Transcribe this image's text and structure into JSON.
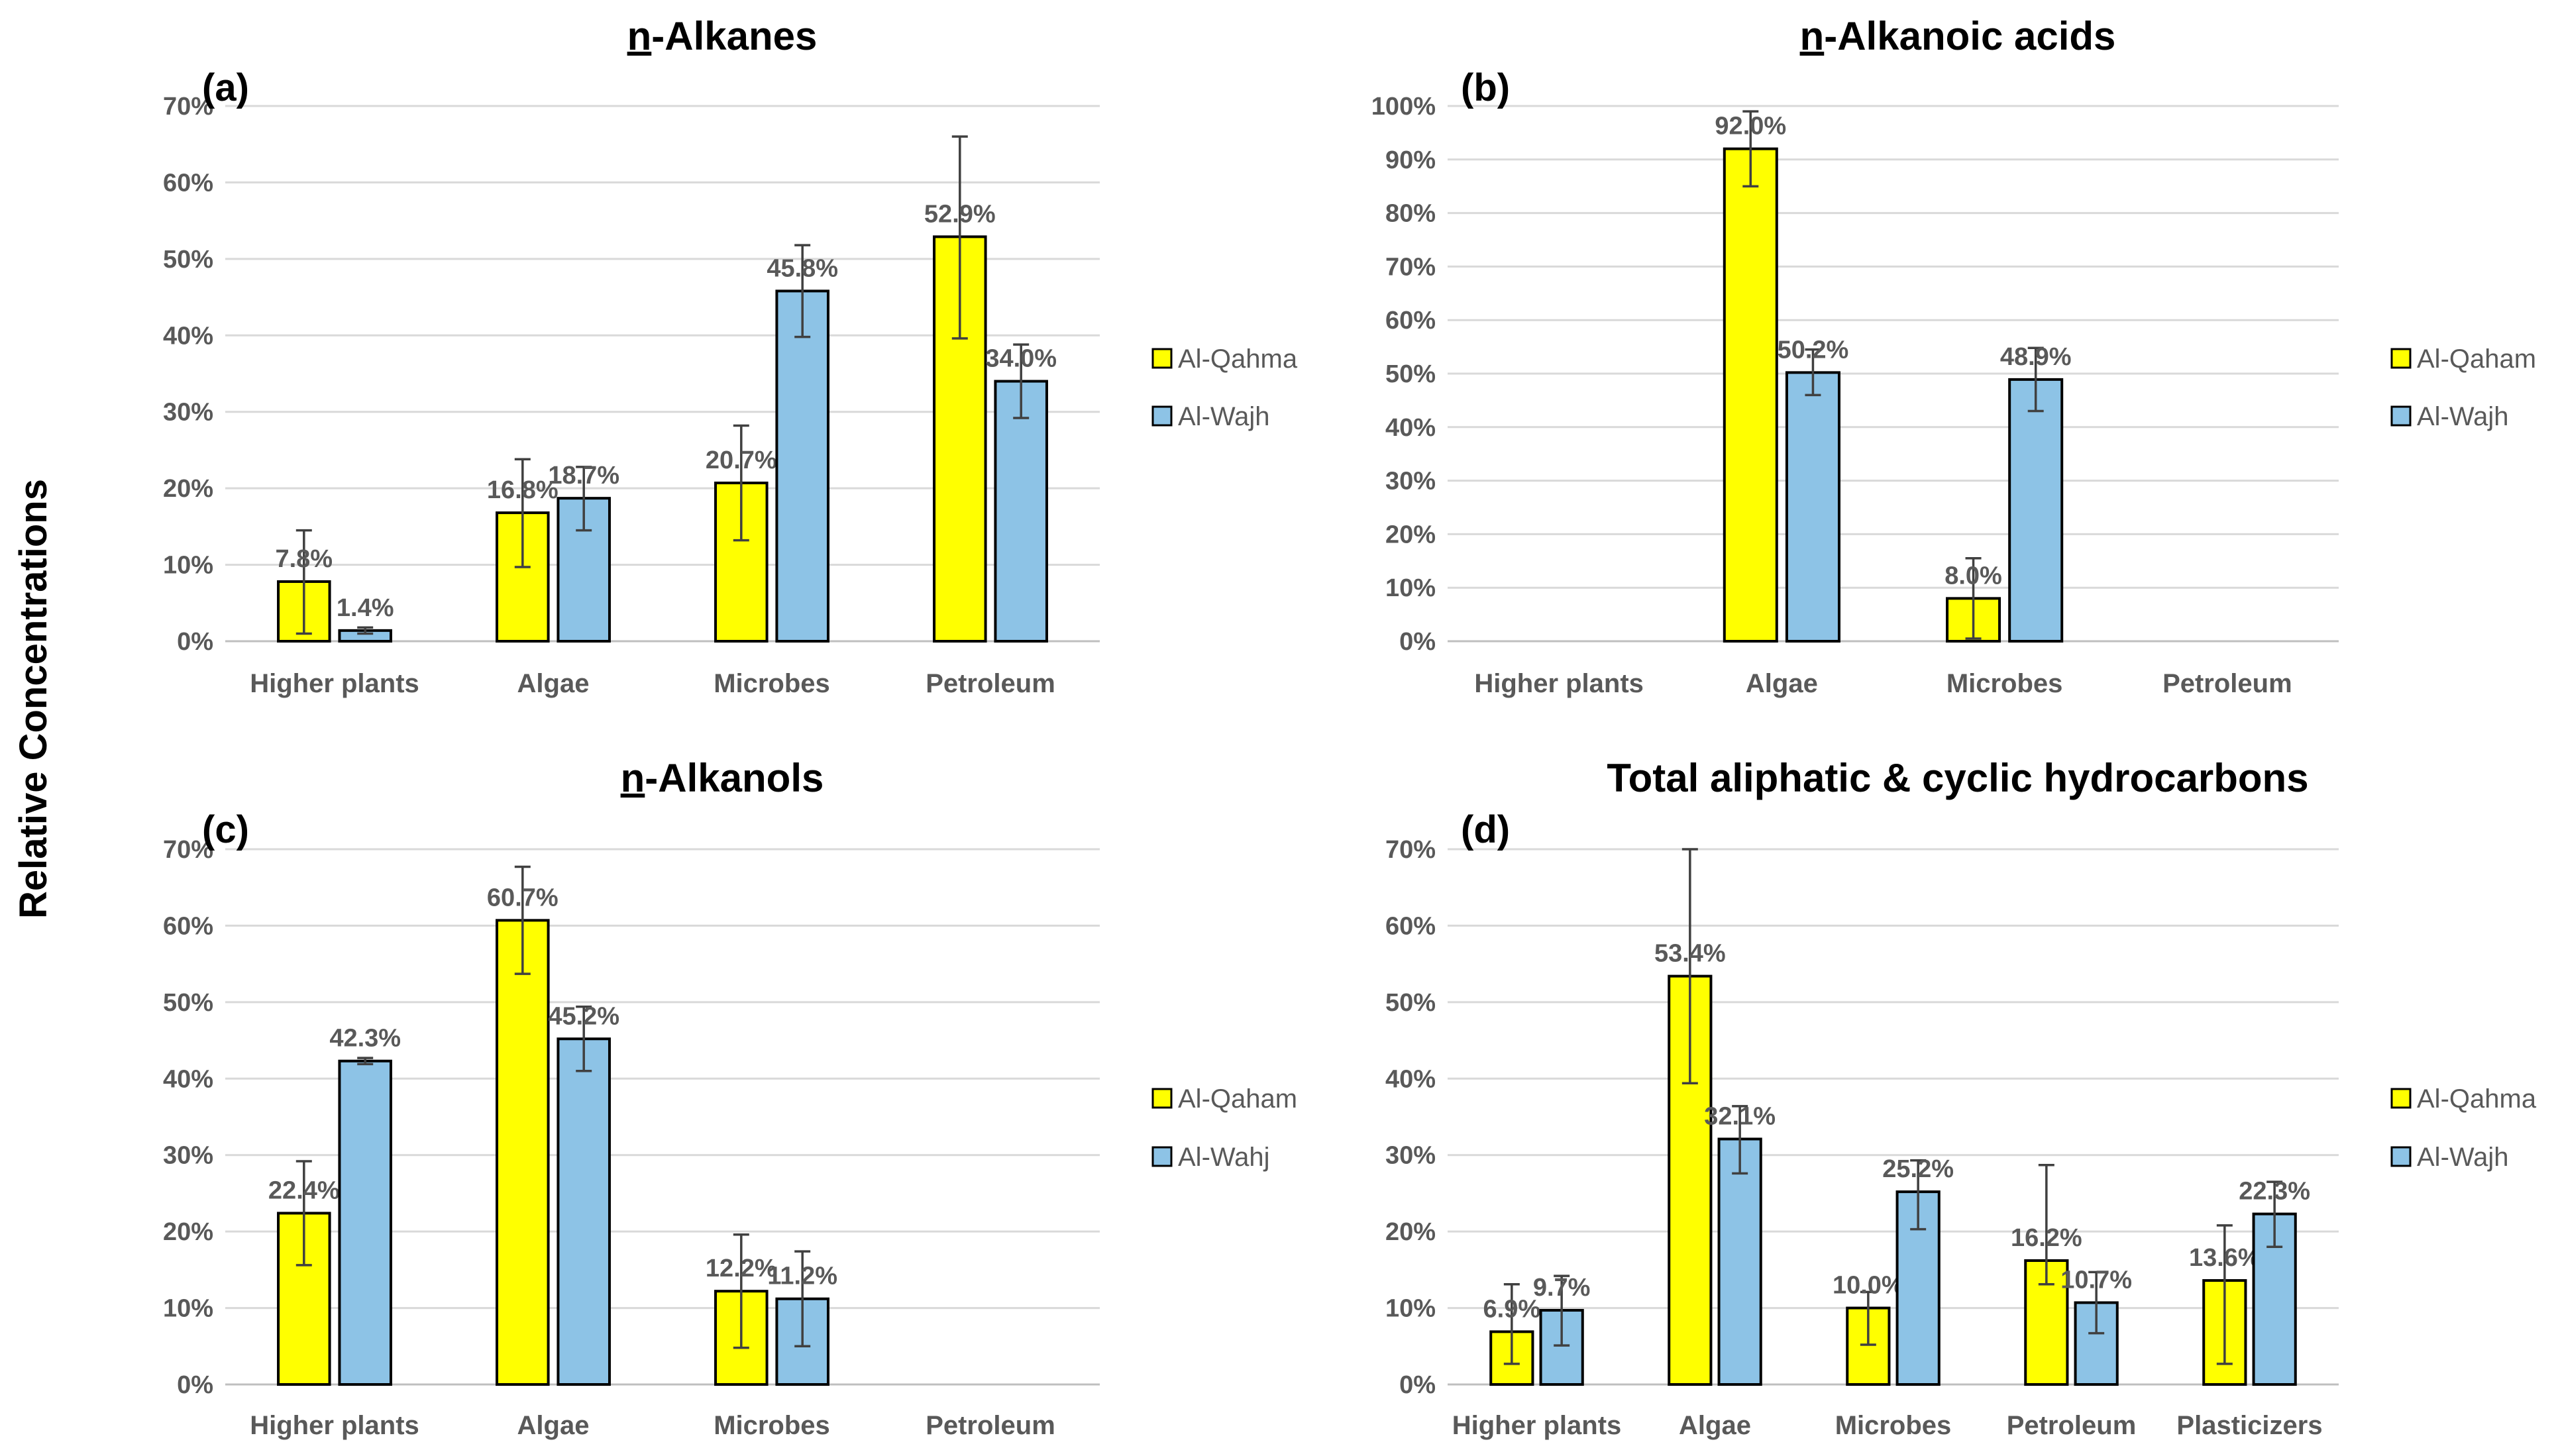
{
  "figure": {
    "ylabel": "Relative Concentrations",
    "colors": {
      "series1": "#FFFF00",
      "series2": "#8DC3E6",
      "edge": "#000000",
      "grid": "#D9D9D9",
      "tick": "#595959",
      "error": "#404040"
    }
  },
  "chart_data": [
    {
      "panel": "(a)",
      "type": "bar",
      "title": "n-Alkanes",
      "title_prefix": "n",
      "title_rest": "-Alkanes",
      "ylim": [
        0,
        70
      ],
      "ystep": 10,
      "yticks": [
        "0%",
        "10%",
        "20%",
        "30%",
        "40%",
        "50%",
        "60%",
        "70%"
      ],
      "categories": [
        "Higher plants",
        "Algae",
        "Microbes",
        "Petroleum"
      ],
      "series": [
        {
          "name": "Al-Qahma",
          "values": [
            7.8,
            16.8,
            20.7,
            52.9
          ],
          "labels": [
            "7.8%",
            "16.8%",
            "20.7%",
            "52.9%"
          ],
          "err_low": [
            1,
            9.7,
            13.2,
            39.6
          ],
          "err_high": [
            14.5,
            23.8,
            28.2,
            66
          ]
        },
        {
          "name": "Al-Wajh",
          "values": [
            1.4,
            18.7,
            45.8,
            34.0
          ],
          "labels": [
            "1.4%",
            "18.7%",
            "45.8%",
            "34.0%"
          ],
          "err_low": [
            1,
            14.5,
            39.8,
            29.2
          ],
          "err_high": [
            1.8,
            22.8,
            51.8,
            38.8
          ]
        }
      ]
    },
    {
      "panel": "(b)",
      "type": "bar",
      "title": "n-Alkanoic acids",
      "title_prefix": "n",
      "title_rest": "-Alkanoic acids",
      "ylim": [
        0,
        100
      ],
      "ystep": 10,
      "yticks": [
        "0%",
        "10%",
        "20%",
        "30%",
        "40%",
        "50%",
        "60%",
        "70%",
        "80%",
        "90%",
        "100%"
      ],
      "categories": [
        "Higher plants",
        "Algae",
        "Microbes",
        "Petroleum"
      ],
      "series": [
        {
          "name": "Al-Qaham",
          "values": [
            null,
            92.0,
            8.0,
            null
          ],
          "labels": [
            "",
            "92.0%",
            "8.0%",
            ""
          ],
          "err_low": [
            null,
            85,
            0.5,
            null
          ],
          "err_high": [
            null,
            99,
            15.5,
            null
          ]
        },
        {
          "name": "Al-Wajh",
          "values": [
            null,
            50.2,
            48.9,
            null
          ],
          "labels": [
            "",
            "50.2%",
            "48.9%",
            ""
          ],
          "err_low": [
            null,
            46,
            43,
            null
          ],
          "err_high": [
            null,
            54.5,
            54.8,
            null
          ]
        }
      ]
    },
    {
      "panel": "(c)",
      "type": "bar",
      "title": "n-Alkanols",
      "title_prefix": "n",
      "title_rest": "-Alkanols",
      "ylim": [
        0,
        70
      ],
      "ystep": 10,
      "yticks": [
        "0%",
        "10%",
        "20%",
        "30%",
        "40%",
        "50%",
        "60%",
        "70%"
      ],
      "categories": [
        "Higher plants",
        "Algae",
        "Microbes",
        "Petroleum"
      ],
      "series": [
        {
          "name": "Al-Qaham",
          "values": [
            22.4,
            60.7,
            12.2,
            null
          ],
          "labels": [
            "22.4%",
            "60.7%",
            "12.2%",
            ""
          ],
          "err_low": [
            15.6,
            53.7,
            4.8,
            null
          ],
          "err_high": [
            29.2,
            67.7,
            19.6,
            null
          ]
        },
        {
          "name": "Al-Wahj",
          "values": [
            42.3,
            45.2,
            11.2,
            null
          ],
          "labels": [
            "42.3%",
            "45.2%",
            "11.2%",
            ""
          ],
          "err_low": [
            41.9,
            41,
            5,
            null
          ],
          "err_high": [
            42.7,
            49.4,
            17.4,
            null
          ]
        }
      ]
    },
    {
      "panel": "(d)",
      "type": "bar",
      "title": "Total aliphatic & cyclic hydrocarbons",
      "title_prefix": "",
      "title_rest": "Total aliphatic & cyclic hydrocarbons",
      "ylim": [
        0,
        70
      ],
      "ystep": 10,
      "yticks": [
        "0%",
        "10%",
        "20%",
        "30%",
        "40%",
        "50%",
        "60%",
        "70%"
      ],
      "categories": [
        "Higher plants",
        "Algae",
        "Microbes",
        "Petroleum",
        "Plasticizers"
      ],
      "series": [
        {
          "name": "Al-Qahma",
          "values": [
            6.9,
            53.4,
            10.0,
            16.2,
            13.6
          ],
          "labels": [
            "6.9%",
            "53.4%",
            "10.0%",
            "16.2%",
            "13.6%"
          ],
          "err_low": [
            2.7,
            39.4,
            5.2,
            13.1,
            2.7
          ],
          "err_high": [
            13.1,
            70,
            12.1,
            28.7,
            20.8
          ]
        },
        {
          "name": "Al-Wajh",
          "values": [
            9.7,
            32.1,
            25.2,
            10.7,
            22.3
          ],
          "labels": [
            "9.7%",
            "32.1%",
            "25.2%",
            "10.7%",
            "22.3%"
          ],
          "err_low": [
            5.1,
            27.6,
            20.3,
            6.7,
            18
          ],
          "err_high": [
            14.2,
            36.4,
            29.3,
            14.7,
            26.5
          ]
        }
      ]
    }
  ]
}
